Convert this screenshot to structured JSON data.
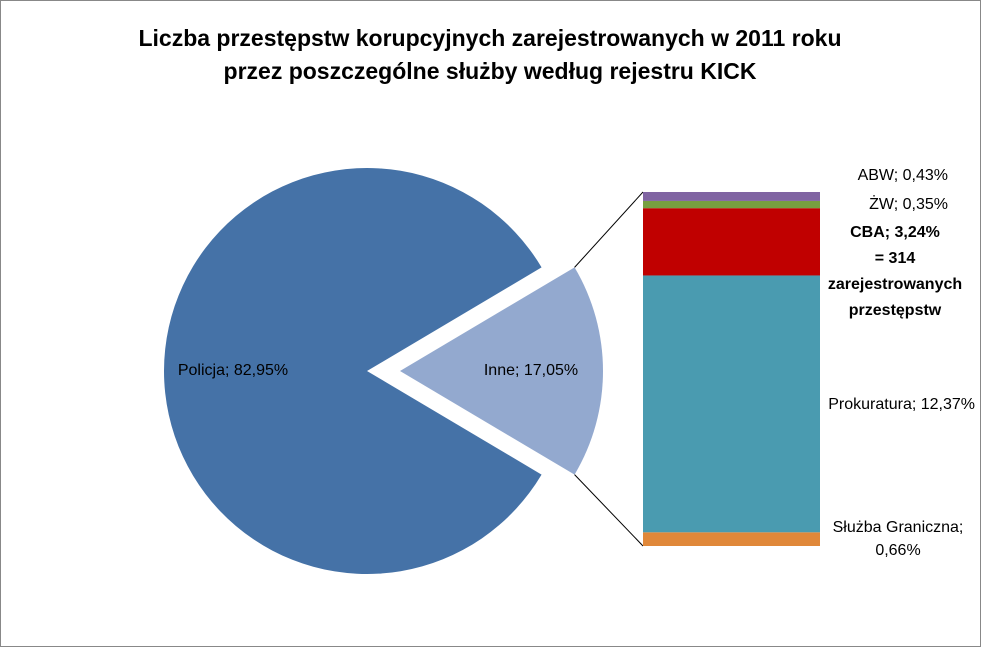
{
  "chart_data": {
    "type": "pie-of-bar",
    "title": [
      "Liczba przestępstw korupcyjnych zarejestrowanych w 2011 roku",
      "przez poszczególne służby według rejestru KICK"
    ],
    "pie": {
      "values": [
        82.95,
        17.05
      ],
      "value_labels": [
        [
          "Policja; 82,95%"
        ],
        [
          "Inne; 17,05%"
        ]
      ],
      "colors": [
        "#4572a7",
        "#93a9cf"
      ]
    },
    "bar": {
      "values": [
        0.66,
        12.37,
        3.24,
        0.35,
        0.43
      ],
      "value_labels": [
        [
          "Służba Graniczna;",
          "0,66%"
        ],
        [
          "Prokuratura; 12,37%"
        ],
        [
          "CBA; 3,24%",
          "= 314",
          "zarejestrowanych",
          "przestępstw"
        ],
        [
          "ŻW; 0,35%"
        ],
        [
          "ABW; 0,43%"
        ]
      ],
      "colors": [
        "#e0883a",
        "#4a9bb0",
        "#c00000",
        "#77a040",
        "#8064a2"
      ]
    }
  }
}
